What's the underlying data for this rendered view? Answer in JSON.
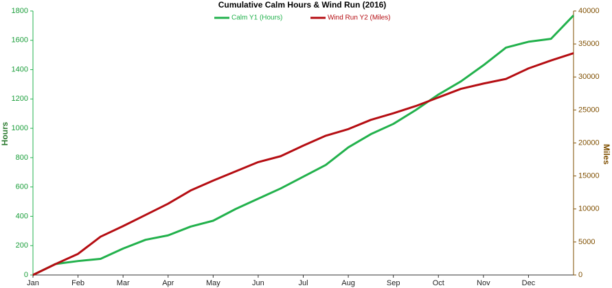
{
  "chart_data": {
    "type": "line",
    "title": "Cumulative Calm Hours & Wind Run (2016)",
    "y_label": "Hours",
    "y2_label": "Miles",
    "categories": [
      "Jan",
      null,
      "Feb",
      null,
      "Mar",
      null,
      "Apr",
      null,
      "May",
      null,
      "Jun",
      null,
      "Jul",
      null,
      "Aug",
      null,
      "Sep",
      null,
      "Oct",
      null,
      "Nov",
      null,
      "Dec",
      null,
      null
    ],
    "ylim": [
      0,
      1800
    ],
    "yticks": [
      0,
      200,
      400,
      600,
      800,
      1000,
      1200,
      1400,
      1600,
      1800
    ],
    "y2lim": [
      0,
      40000
    ],
    "y2ticks": [
      0,
      5000,
      10000,
      15000,
      20000,
      25000,
      30000,
      35000,
      40000
    ],
    "legend": "top",
    "series": [
      {
        "name": "Calm Y1 (Hours)",
        "color": "#22b14c",
        "values": [
          0,
          75,
          95,
          110,
          180,
          240,
          270,
          330,
          370,
          450,
          520,
          590,
          670,
          750,
          870,
          960,
          1030,
          1125,
          1230,
          1320,
          1430,
          1550,
          1590,
          1610,
          1770
        ]
      },
      {
        "name": "Wind Run Y2 (Miles)",
        "color": "#b50d12",
        "axis": "y2",
        "values": [
          0,
          1650,
          3200,
          5800,
          7400,
          9100,
          10800,
          12800,
          14300,
          15700,
          17100,
          18000,
          19600,
          21100,
          22100,
          23500,
          24500,
          25600,
          26900,
          28200,
          29000,
          29700,
          31300,
          32500,
          33600
        ]
      }
    ]
  }
}
